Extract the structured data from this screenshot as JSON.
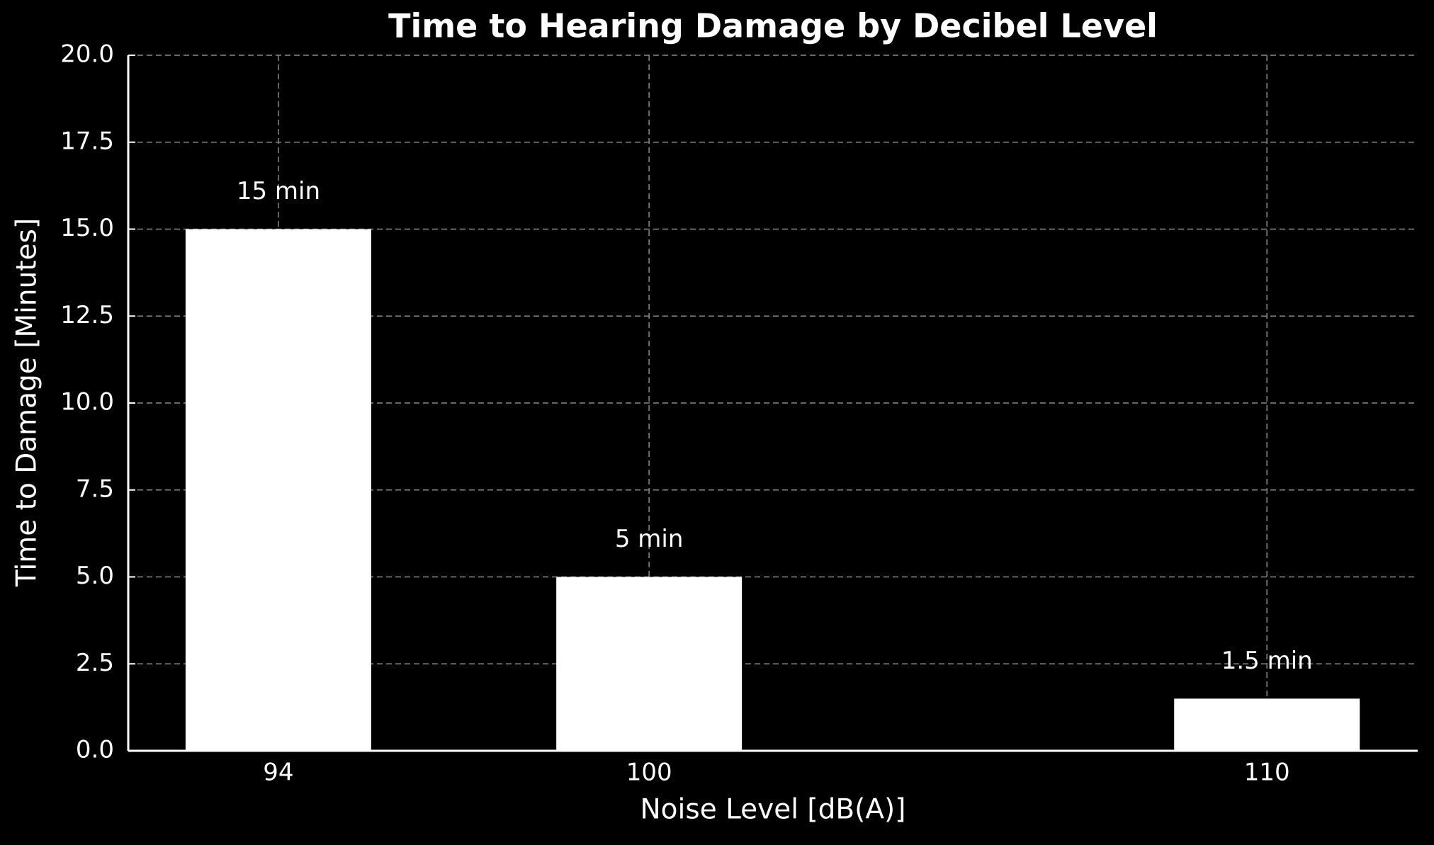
{
  "chart_data": {
    "type": "bar",
    "title": "Time to Hearing Damage by Decibel Level",
    "x_label": "Noise Level [dB(A)]",
    "y_label": "Time to Damage [Minutes]",
    "x": [
      94,
      100,
      110
    ],
    "values": [
      15,
      5,
      1.5
    ],
    "value_labels": [
      "15 min",
      "5 min",
      "1.5 min"
    ],
    "color": "#ffffff",
    "xlim": [
      91.57,
      112.44
    ],
    "xticks": [
      94,
      100,
      110
    ],
    "ylim": [
      0,
      20
    ],
    "yticks": [
      {
        "value": 0,
        "label": "0.0"
      },
      2.5,
      {
        "value": 5,
        "label": "5.0"
      },
      7.5,
      {
        "value": 10,
        "label": "10.0"
      },
      12.5,
      {
        "value": 15,
        "label": "15.0"
      },
      17.5,
      {
        "value": 20,
        "label": "20.0"
      }
    ],
    "grid": true
  }
}
